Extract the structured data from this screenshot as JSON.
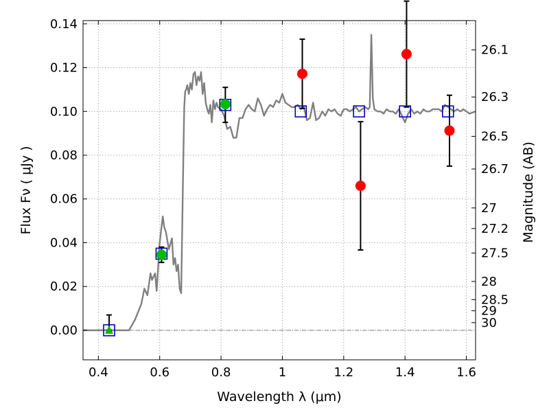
{
  "chart_data": {
    "type": "scatter",
    "xlabel": "Wavelength  λ (μm)",
    "ylabel": "Flux  Fν  ( μJy )",
    "ylabel_right": "Magnitude (AB)",
    "xlim": [
      0.35,
      1.63
    ],
    "ylim": [
      -0.0135,
      0.1415
    ],
    "x_ticks": [
      0.4,
      0.6,
      0.8,
      1.0,
      1.2,
      1.4,
      1.6
    ],
    "x_tick_labels": [
      "0.4",
      "0.6",
      "0.8",
      "1",
      "1.2",
      "1.4",
      "1.6"
    ],
    "y_ticks": [
      0.0,
      0.02,
      0.04,
      0.06,
      0.08,
      0.1,
      0.12,
      0.14
    ],
    "y_tick_labels": [
      "0.00",
      "0.02",
      "0.04",
      "0.06",
      "0.08",
      "0.10",
      "0.12",
      "0.14"
    ],
    "right_ticks": [
      {
        "label": "26.1",
        "flux": 0.1281
      },
      {
        "label": "26.3",
        "flux": 0.1066
      },
      {
        "label": "26.5",
        "flux": 0.0886
      },
      {
        "label": "26.7",
        "flux": 0.0737
      },
      {
        "label": "27",
        "flux": 0.0559
      },
      {
        "label": "27.2",
        "flux": 0.0465
      },
      {
        "label": "27.5",
        "flux": 0.0353
      },
      {
        "label": "28",
        "flux": 0.0223
      },
      {
        "label": "28.5",
        "flux": 0.014
      },
      {
        "label": "29",
        "flux": 0.0089
      },
      {
        "label": "30",
        "flux": 0.0035
      }
    ],
    "grid": true,
    "zero_line": true,
    "colors": {
      "model": "#808080",
      "detection": "#00bb00",
      "upper_limit": "#ff0000",
      "model_photometry": "#0000cc",
      "errorbar": "#000000"
    },
    "model_spectrum": {
      "x": [
        0.35,
        0.5,
        0.52,
        0.54,
        0.55,
        0.56,
        0.57,
        0.575,
        0.585,
        0.59,
        0.6,
        0.61,
        0.615,
        0.62,
        0.63,
        0.64,
        0.645,
        0.65,
        0.655,
        0.66,
        0.665,
        0.67,
        0.675,
        0.678,
        0.68,
        0.683,
        0.686,
        0.69,
        0.695,
        0.7,
        0.705,
        0.71,
        0.715,
        0.72,
        0.725,
        0.73,
        0.735,
        0.74,
        0.745,
        0.75,
        0.755,
        0.76,
        0.765,
        0.77,
        0.775,
        0.78,
        0.785,
        0.79,
        0.8,
        0.81,
        0.82,
        0.83,
        0.84,
        0.85,
        0.86,
        0.87,
        0.88,
        0.89,
        0.9,
        0.91,
        0.92,
        0.93,
        0.94,
        0.95,
        0.96,
        0.97,
        0.98,
        0.99,
        1.0,
        1.01,
        1.02,
        1.03,
        1.04,
        1.05,
        1.06,
        1.07,
        1.08,
        1.09,
        1.1,
        1.11,
        1.12,
        1.13,
        1.14,
        1.15,
        1.16,
        1.17,
        1.18,
        1.19,
        1.2,
        1.21,
        1.22,
        1.23,
        1.24,
        1.25,
        1.26,
        1.27,
        1.28,
        1.285,
        1.29,
        1.295,
        1.3,
        1.31,
        1.32,
        1.33,
        1.34,
        1.35,
        1.36,
        1.37,
        1.38,
        1.39,
        1.4,
        1.41,
        1.42,
        1.43,
        1.44,
        1.45,
        1.46,
        1.47,
        1.48,
        1.49,
        1.5,
        1.51,
        1.52,
        1.53,
        1.54,
        1.55,
        1.56,
        1.57,
        1.58,
        1.59,
        1.6,
        1.61,
        1.63
      ],
      "y": [
        0.0,
        0.0,
        0.005,
        0.012,
        0.019,
        0.016,
        0.026,
        0.023,
        0.026,
        0.018,
        0.04,
        0.052,
        0.047,
        0.045,
        0.037,
        0.042,
        0.03,
        0.033,
        0.027,
        0.03,
        0.019,
        0.017,
        0.06,
        0.087,
        0.102,
        0.109,
        0.11,
        0.112,
        0.108,
        0.113,
        0.11,
        0.117,
        0.118,
        0.112,
        0.116,
        0.114,
        0.118,
        0.108,
        0.113,
        0.104,
        0.101,
        0.099,
        0.103,
        0.095,
        0.105,
        0.101,
        0.104,
        0.102,
        0.101,
        0.098,
        0.092,
        0.093,
        0.088,
        0.088,
        0.097,
        0.097,
        0.101,
        0.103,
        0.101,
        0.1,
        0.106,
        0.103,
        0.098,
        0.101,
        0.103,
        0.102,
        0.105,
        0.104,
        0.108,
        0.104,
        0.103,
        0.102,
        0.102,
        0.103,
        0.101,
        0.102,
        0.096,
        0.097,
        0.104,
        0.096,
        0.097,
        0.1,
        0.098,
        0.101,
        0.1,
        0.101,
        0.099,
        0.098,
        0.101,
        0.101,
        0.1,
        0.101,
        0.102,
        0.1,
        0.101,
        0.102,
        0.101,
        0.102,
        0.135,
        0.106,
        0.101,
        0.1,
        0.1,
        0.099,
        0.101,
        0.1,
        0.1,
        0.099,
        0.101,
        0.098,
        0.095,
        0.099,
        0.101,
        0.099,
        0.1,
        0.099,
        0.101,
        0.1,
        0.1,
        0.101,
        0.101,
        0.101,
        0.1,
        0.103,
        0.102,
        0.101,
        0.1,
        0.101,
        0.1,
        0.101,
        0.1,
        0.099,
        0.1
      ]
    },
    "model_photometry": {
      "x": [
        0.435,
        0.606,
        0.814,
        1.06,
        1.25,
        1.4,
        1.54
      ],
      "y": [
        0.0,
        0.035,
        0.103,
        0.1,
        0.1,
        0.1,
        0.1
      ]
    },
    "detections": [
      {
        "x": 0.606,
        "y": 0.0345,
        "yerr_low": 0.0035,
        "yerr_high": 0.0035
      },
      {
        "x": 0.814,
        "y": 0.1033,
        "yerr_low": 0.0083,
        "yerr_high": 0.0077
      }
    ],
    "upper_limit_triangle": {
      "x": 0.435,
      "y": 0.0,
      "yerr_low": 0.0,
      "yerr_high": 0.007
    },
    "upper_limits": [
      {
        "x": 1.065,
        "y": 0.1172,
        "yerr_low": 0.0158,
        "yerr_high": 0.0158
      },
      {
        "x": 1.255,
        "y": 0.066,
        "yerr_low": 0.0293,
        "yerr_high": 0.0293
      },
      {
        "x": 1.405,
        "y": 0.1262,
        "yerr_low": 0.0242,
        "yerr_high": 0.0242
      },
      {
        "x": 1.545,
        "y": 0.0912,
        "yerr_low": 0.0162,
        "yerr_high": 0.0162
      }
    ]
  }
}
